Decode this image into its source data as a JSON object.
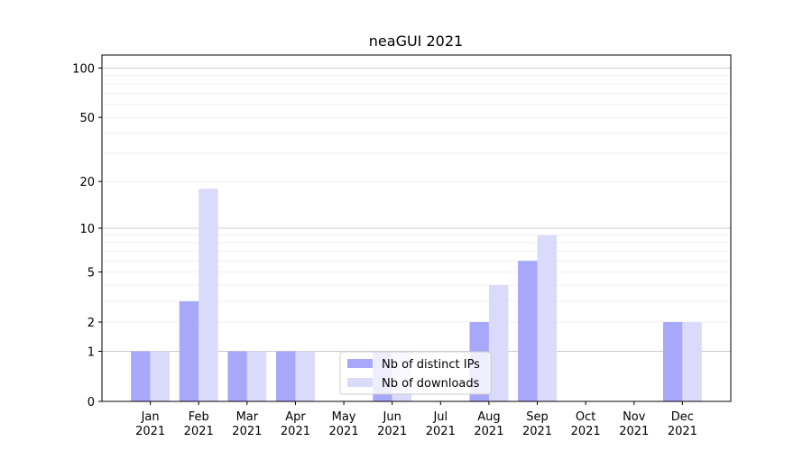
{
  "chart_data": {
    "type": "bar",
    "title": "neaGUI 2021",
    "xlabel": "",
    "ylabel": "",
    "categories": [
      "Jan 2021",
      "Feb 2021",
      "Mar 2021",
      "Apr 2021",
      "May 2021",
      "Jun 2021",
      "Jul 2021",
      "Aug 2021",
      "Sep 2021",
      "Oct 2021",
      "Nov 2021",
      "Dec 2021"
    ],
    "category_lines": [
      [
        "Jan",
        "2021"
      ],
      [
        "Feb",
        "2021"
      ],
      [
        "Mar",
        "2021"
      ],
      [
        "Apr",
        "2021"
      ],
      [
        "May",
        "2021"
      ],
      [
        "Jun",
        "2021"
      ],
      [
        "Jul",
        "2021"
      ],
      [
        "Aug",
        "2021"
      ],
      [
        "Sep",
        "2021"
      ],
      [
        "Oct",
        "2021"
      ],
      [
        "Nov",
        "2021"
      ],
      [
        "Dec",
        "2021"
      ]
    ],
    "series": [
      {
        "name": "Nb of distinct IPs",
        "color": "#a8a8fa",
        "values": [
          1,
          3,
          1,
          1,
          0,
          1,
          0,
          2,
          6,
          0,
          0,
          2
        ]
      },
      {
        "name": "Nb of downloads",
        "color": "#dadafb",
        "values": [
          1,
          18,
          1,
          1,
          0,
          1,
          0,
          4,
          9,
          0,
          0,
          2
        ]
      }
    ],
    "y_scale": "log1p",
    "ylim": [
      0,
      120
    ],
    "yticks": [
      0,
      1,
      2,
      5,
      10,
      20,
      50,
      100
    ],
    "grid": true,
    "legend_position": "lower-center"
  }
}
